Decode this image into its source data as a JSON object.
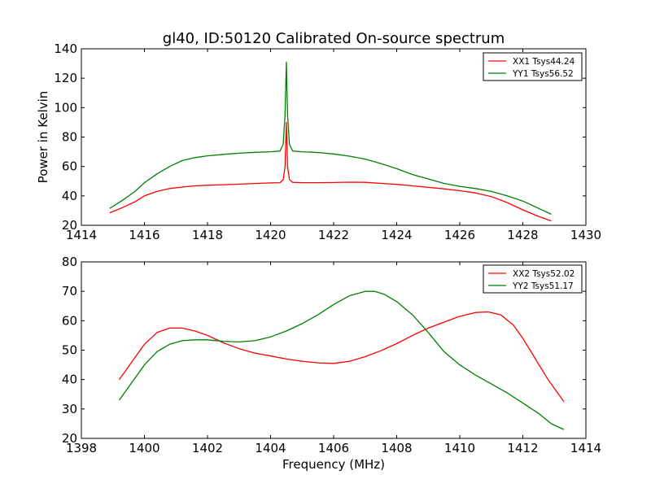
{
  "figure": {
    "title": "gl40, ID:50120 Calibrated On-source spectrum"
  },
  "chart_data": [
    {
      "type": "line",
      "title": "gl40, ID:50120 Calibrated On-source spectrum",
      "xlabel": "",
      "ylabel": "Power in Kelvin",
      "xlim": [
        1414,
        1430
      ],
      "ylim": [
        20,
        140
      ],
      "xticks": [
        1414,
        1416,
        1418,
        1420,
        1422,
        1424,
        1426,
        1428,
        1430
      ],
      "yticks": [
        20,
        40,
        60,
        80,
        100,
        120,
        140
      ],
      "grid": false,
      "legend_position": "top-right",
      "series": [
        {
          "name": "XX1 Tsys44.24",
          "color": "#ff0000",
          "x": [
            1414.9,
            1415.3,
            1415.7,
            1416.0,
            1416.4,
            1416.8,
            1417.2,
            1417.6,
            1418.0,
            1418.5,
            1419.0,
            1419.5,
            1420.0,
            1420.3,
            1420.4,
            1420.46,
            1420.5,
            1420.54,
            1420.6,
            1420.7,
            1421.0,
            1421.5,
            1422.0,
            1422.5,
            1423.0,
            1423.5,
            1424.0,
            1424.5,
            1425.0,
            1425.5,
            1426.0,
            1426.5,
            1427.0,
            1427.5,
            1428.0,
            1428.5,
            1428.9
          ],
          "y": [
            28.5,
            32,
            36,
            40,
            43,
            45,
            46,
            46.8,
            47.2,
            47.6,
            48,
            48.4,
            48.8,
            49,
            51,
            60,
            90,
            60,
            51,
            49.2,
            49,
            49,
            49.1,
            49.3,
            49.2,
            48.5,
            47.8,
            46.8,
            45.8,
            44.8,
            43.5,
            42,
            39.5,
            35.5,
            30.5,
            26,
            23
          ]
        },
        {
          "name": "YY1 Tsys56.52",
          "color": "#008000",
          "x": [
            1414.9,
            1415.3,
            1415.7,
            1416.0,
            1416.4,
            1416.8,
            1417.2,
            1417.6,
            1418.0,
            1418.5,
            1419.0,
            1419.5,
            1420.0,
            1420.3,
            1420.4,
            1420.46,
            1420.5,
            1420.54,
            1420.6,
            1420.7,
            1421.0,
            1421.5,
            1422.0,
            1422.5,
            1423.0,
            1423.5,
            1424.0,
            1424.5,
            1425.0,
            1425.5,
            1426.0,
            1426.5,
            1427.0,
            1427.5,
            1428.0,
            1428.5,
            1428.9
          ],
          "y": [
            31.5,
            37,
            43,
            49,
            55,
            60,
            64,
            66,
            67.2,
            68.2,
            69,
            69.6,
            70,
            70.5,
            75,
            95,
            131,
            95,
            75,
            70.5,
            70,
            69.5,
            68.5,
            67,
            65,
            62,
            58.5,
            54.5,
            51.5,
            48.5,
            46.5,
            45,
            43,
            40,
            36.5,
            31.5,
            27.5
          ]
        }
      ]
    },
    {
      "type": "line",
      "title": "",
      "xlabel": "Frequency (MHz)",
      "ylabel": "",
      "xlim": [
        1398,
        1414
      ],
      "ylim": [
        20,
        80
      ],
      "xticks": [
        1398,
        1400,
        1402,
        1404,
        1406,
        1408,
        1410,
        1412,
        1414
      ],
      "yticks": [
        20,
        30,
        40,
        50,
        60,
        70,
        80
      ],
      "grid": false,
      "legend_position": "top-right",
      "series": [
        {
          "name": "XX2 Tsys52.02",
          "color": "#ff0000",
          "x": [
            1399.2,
            1399.6,
            1400.0,
            1400.4,
            1400.8,
            1401.2,
            1401.6,
            1402.0,
            1402.5,
            1403.0,
            1403.5,
            1404.0,
            1404.5,
            1405.0,
            1405.5,
            1406.0,
            1406.5,
            1407.0,
            1407.5,
            1408.0,
            1408.5,
            1409.0,
            1409.5,
            1410.0,
            1410.5,
            1410.9,
            1411.3,
            1411.7,
            1412.0,
            1412.4,
            1412.8,
            1413.3
          ],
          "y": [
            40,
            46,
            52,
            56,
            57.5,
            57.5,
            56.5,
            55,
            52.5,
            50.5,
            49,
            48,
            47,
            46.2,
            45.7,
            45.5,
            46.2,
            47.8,
            49.8,
            52.2,
            55,
            57.5,
            59.5,
            61.5,
            62.8,
            63,
            62,
            58.5,
            54,
            47,
            40,
            32.5
          ]
        },
        {
          "name": "YY2 Tsys51.17",
          "color": "#008000",
          "x": [
            1399.2,
            1399.6,
            1400.0,
            1400.4,
            1400.8,
            1401.2,
            1401.6,
            1402.0,
            1402.5,
            1403.0,
            1403.5,
            1404.0,
            1404.5,
            1405.0,
            1405.5,
            1406.0,
            1406.5,
            1407.0,
            1407.3,
            1407.6,
            1408.0,
            1408.5,
            1409.0,
            1409.5,
            1410.0,
            1410.5,
            1411.0,
            1411.5,
            1412.0,
            1412.5,
            1412.9,
            1413.3
          ],
          "y": [
            33,
            39,
            45,
            49.5,
            52,
            53.2,
            53.5,
            53.5,
            53,
            52.8,
            53.2,
            54.5,
            56.5,
            59,
            62,
            65.5,
            68.5,
            70,
            70,
            69,
            66.5,
            62,
            56,
            49.5,
            45,
            41.5,
            38.5,
            35.5,
            32,
            28.5,
            25,
            23
          ]
        }
      ]
    }
  ]
}
